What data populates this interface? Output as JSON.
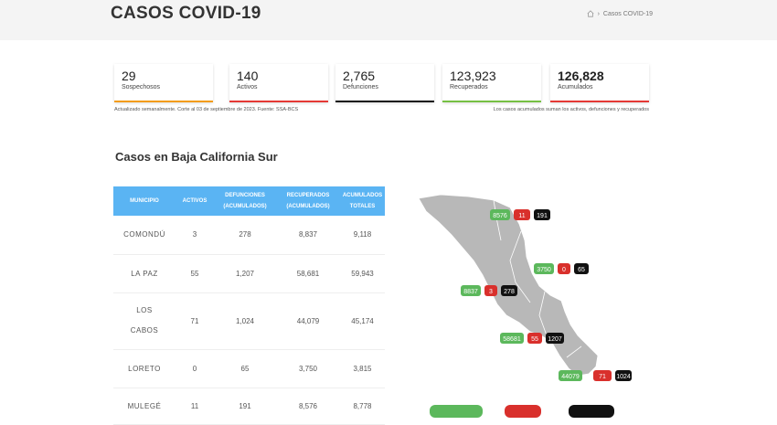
{
  "page": {
    "title": "CASOS COVID-19",
    "breadcrumb": {
      "home_icon": "home-icon",
      "separator": "›",
      "current": "Casos COVID-19"
    }
  },
  "stats": [
    {
      "value": "29",
      "label": "Sospechosos",
      "color": "#f39c12"
    },
    {
      "value": "140",
      "label": "Activos",
      "color": "#e53935"
    },
    {
      "value": "2,765",
      "label": "Defunciones",
      "color": "#111111"
    },
    {
      "value": "123,923",
      "label": "Recuperados",
      "color": "#76c043"
    },
    {
      "value": "126,828",
      "label": "Acumulados",
      "color": "#e53935"
    }
  ],
  "notes": {
    "left": "Actualizado semanalmente. Corte al 03 de septiembre de 2023. Fuente: SSA-BCS",
    "right": "Los casos acumulados suman los activos, defunciones y recuperados"
  },
  "section_title": "Casos en Baja California Sur",
  "table": {
    "headers": [
      [
        "MUNICIPIO"
      ],
      [
        "ACTIVOS"
      ],
      [
        "DEFUNCIONES",
        "(ACUMULADOS)"
      ],
      [
        "RECUPERADOS",
        "(ACUMULADOS)"
      ],
      [
        "ACUMULADOS",
        "TOTALES"
      ]
    ],
    "rows": [
      {
        "name": [
          "COMONDÚ"
        ],
        "activos": "3",
        "defunciones": "278",
        "recuperados": "8,837",
        "totales": "9,118"
      },
      {
        "name": [
          "LA PAZ"
        ],
        "activos": "55",
        "defunciones": "1,207",
        "recuperados": "58,681",
        "totales": "59,943"
      },
      {
        "name": [
          "LOS",
          "CABOS"
        ],
        "activos": "71",
        "defunciones": "1,024",
        "recuperados": "44,079",
        "totales": "45,174"
      },
      {
        "name": [
          "LORETO"
        ],
        "activos": "0",
        "defunciones": "65",
        "recuperados": "3,750",
        "totales": "3,815"
      },
      {
        "name": [
          "MULEGÉ"
        ],
        "activos": "11",
        "defunciones": "191",
        "recuperados": "8,576",
        "totales": "8,778"
      }
    ]
  },
  "map": {
    "colors": {
      "green": "#5cb85c",
      "red": "#d9302c",
      "black": "#111111",
      "land": "#b8b8b8"
    },
    "badges": [
      {
        "municipio": "MULEGÉ",
        "recuperados": "8576",
        "activos": "11",
        "defunciones": "191"
      },
      {
        "municipio": "LORETO",
        "recuperados": "3750",
        "activos": "0",
        "defunciones": "65"
      },
      {
        "municipio": "COMONDÚ",
        "recuperados": "8837",
        "activos": "3",
        "defunciones": "278"
      },
      {
        "municipio": "LA PAZ",
        "recuperados": "58681",
        "activos": "55",
        "defunciones": "1207"
      },
      {
        "municipio": "LOS CABOS",
        "recuperados": "44079",
        "activos": "71",
        "defunciones": "1024"
      }
    ]
  }
}
